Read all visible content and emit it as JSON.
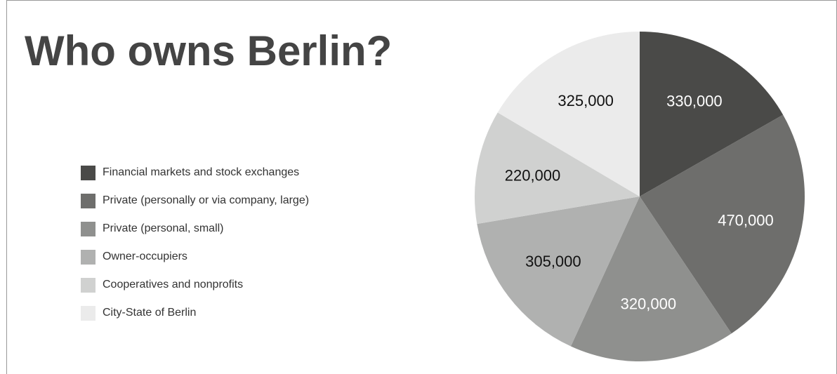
{
  "chart_data": {
    "type": "pie",
    "title": "Who owns Berlin?",
    "categories": [
      "Financial markets and stock exchanges",
      "Private (personally or via company, large)",
      "Private (personal, small)",
      "Owner-occupiers",
      "Cooperatives and nonprofits",
      "City-State of Berlin"
    ],
    "values": [
      330000,
      470000,
      320000,
      305000,
      220000,
      325000
    ],
    "value_labels": [
      "330,000",
      "470,000",
      "320,000",
      "305,000",
      "220,000",
      "325,000"
    ],
    "colors": [
      "#4a4a48",
      "#6e6e6c",
      "#8f908e",
      "#b0b1b0",
      "#d0d1d0",
      "#ebebeb"
    ]
  }
}
